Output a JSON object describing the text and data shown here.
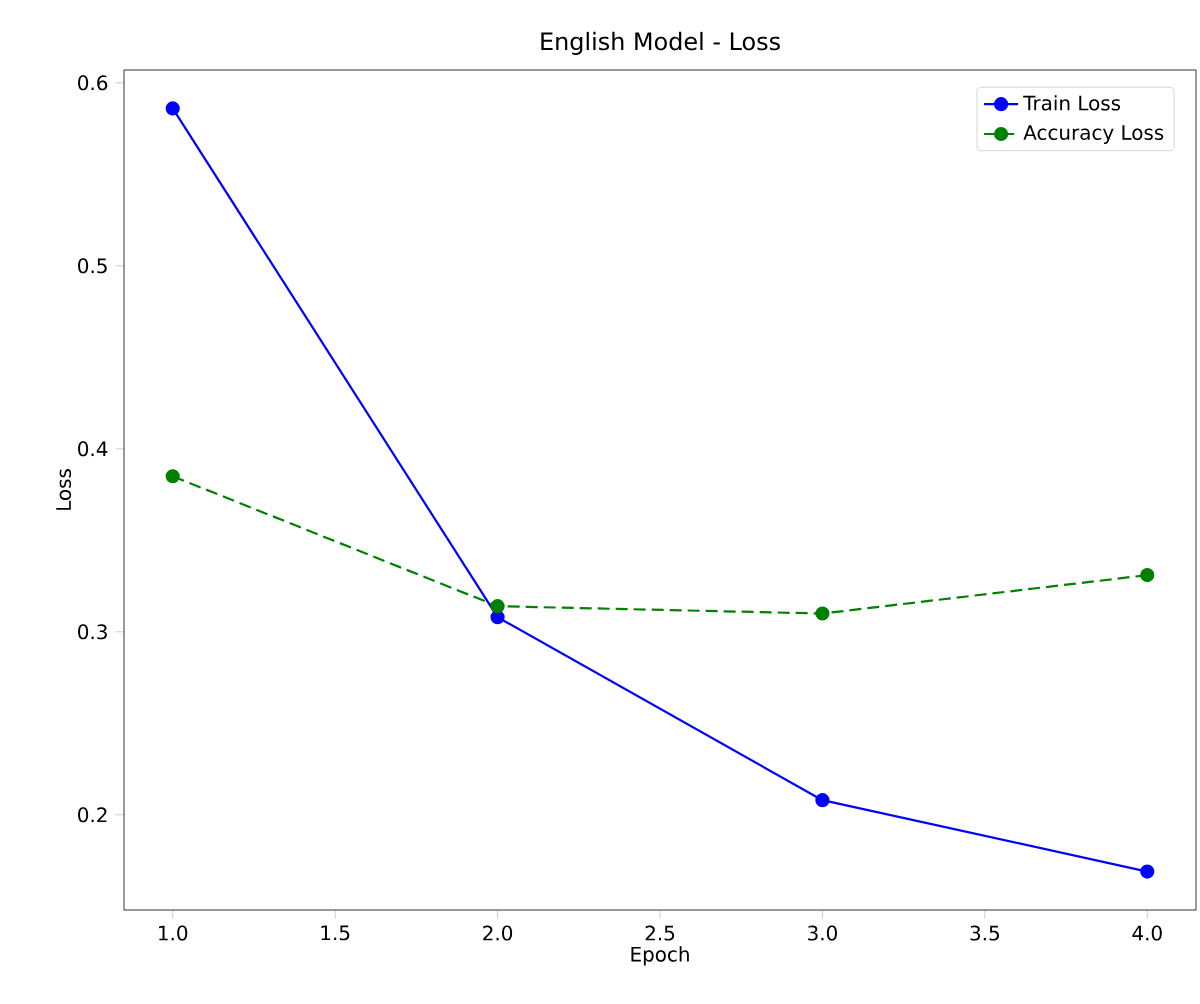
{
  "chart_data": {
    "type": "line",
    "title": "English Model - Loss",
    "xlabel": "Epoch",
    "ylabel": "Loss",
    "x": [
      1.0,
      2.0,
      3.0,
      4.0
    ],
    "series": [
      {
        "name": "Train Loss",
        "color": "#0000ff",
        "values": [
          0.586,
          0.308,
          0.208,
          0.169
        ],
        "line_style": "solid"
      },
      {
        "name": "Accuracy Loss",
        "color": "#008000",
        "values": [
          0.385,
          0.314,
          0.31,
          0.331
        ],
        "line_style": "dashed"
      }
    ],
    "xlim": [
      0.85,
      4.15
    ],
    "ylim": [
      0.148,
      0.607
    ],
    "xticks": [
      {
        "value": 1.0,
        "label": "1.0"
      },
      {
        "value": 1.5,
        "label": "1.5"
      },
      {
        "value": 2.0,
        "label": "2.0"
      },
      {
        "value": 2.5,
        "label": "2.5"
      },
      {
        "value": 3.0,
        "label": "3.0"
      },
      {
        "value": 3.5,
        "label": "3.5"
      },
      {
        "value": 4.0,
        "label": "4.0"
      }
    ],
    "yticks": [
      {
        "value": 0.2,
        "label": "0.2"
      },
      {
        "value": 0.3,
        "label": "0.3"
      },
      {
        "value": 0.4,
        "label": "0.4"
      },
      {
        "value": 0.5,
        "label": "0.5"
      },
      {
        "value": 0.6,
        "label": "0.6"
      }
    ],
    "marker": "circle",
    "legend": "top right",
    "grid": false
  }
}
